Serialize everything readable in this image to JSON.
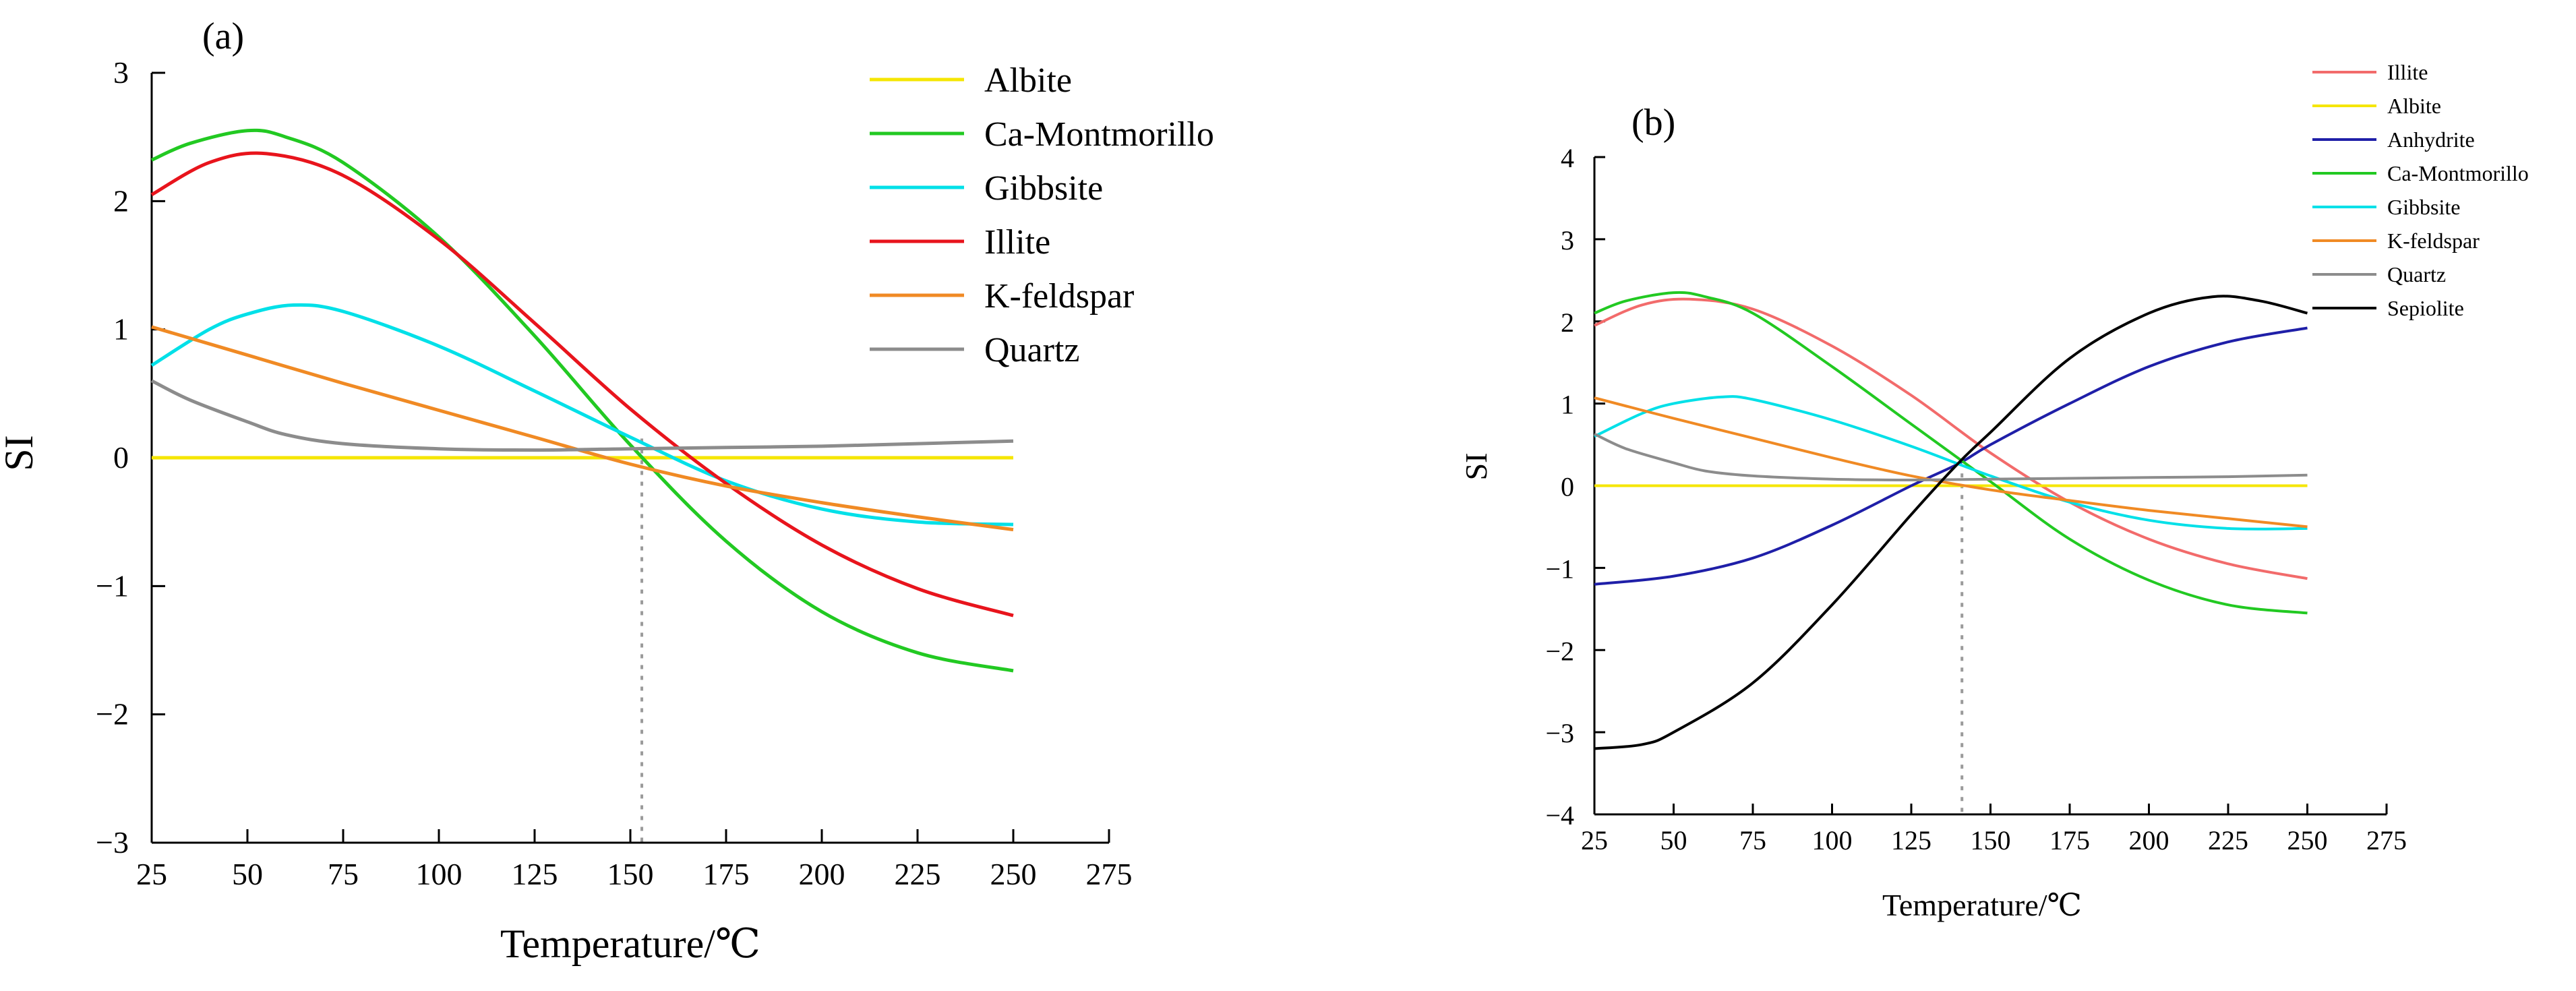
{
  "chart_data": [
    {
      "type": "line",
      "panel_label": "(a)",
      "xlabel": "Temperature/℃",
      "ylabel": "SI",
      "xlim": [
        25,
        275
      ],
      "ylim": [
        -3,
        3
      ],
      "xticks": [
        25,
        50,
        75,
        100,
        125,
        150,
        175,
        200,
        225,
        250,
        275
      ],
      "yticks": [
        3,
        2,
        1,
        0,
        -1,
        -2,
        -3
      ],
      "ytick_labels": [
        "3",
        "2",
        "1",
        "0",
        "−1",
        "−2",
        "−3"
      ],
      "reference_line_x": 153,
      "legend_position": "top-right",
      "series": [
        {
          "name": "Albite",
          "color": "#f5e600",
          "x": [
            25,
            250
          ],
          "y": [
            0,
            0
          ]
        },
        {
          "name": "Ca-Montmorillo",
          "color": "#22c922",
          "x": [
            25,
            35,
            50,
            60,
            75,
            100,
            125,
            150,
            175,
            200,
            225,
            250
          ],
          "y": [
            2.32,
            2.45,
            2.55,
            2.5,
            2.3,
            1.72,
            0.95,
            0.1,
            -0.65,
            -1.2,
            -1.52,
            -1.66
          ]
        },
        {
          "name": "Gibbsite",
          "color": "#00e0e8",
          "x": [
            25,
            40,
            50,
            62,
            75,
            100,
            125,
            150,
            175,
            200,
            225,
            250
          ],
          "y": [
            0.72,
            1.0,
            1.12,
            1.19,
            1.14,
            0.87,
            0.52,
            0.16,
            -0.18,
            -0.4,
            -0.5,
            -0.52
          ]
        },
        {
          "name": "Illite",
          "color": "#e8141c",
          "x": [
            25,
            40,
            55,
            75,
            100,
            125,
            150,
            175,
            200,
            225,
            250
          ],
          "y": [
            2.05,
            2.3,
            2.37,
            2.2,
            1.7,
            1.05,
            0.38,
            -0.2,
            -0.68,
            -1.02,
            -1.23
          ]
        },
        {
          "name": "K-feldspar",
          "color": "#f08a24",
          "x": [
            25,
            50,
            75,
            100,
            125,
            150,
            175,
            200,
            225,
            250
          ],
          "y": [
            1.02,
            0.8,
            0.58,
            0.37,
            0.16,
            -0.05,
            -0.22,
            -0.35,
            -0.46,
            -0.56
          ]
        },
        {
          "name": "Quartz",
          "color": "#8c8c8c",
          "x": [
            25,
            35,
            50,
            60,
            75,
            100,
            125,
            150,
            175,
            200,
            225,
            250
          ],
          "y": [
            0.6,
            0.45,
            0.28,
            0.18,
            0.11,
            0.07,
            0.06,
            0.07,
            0.08,
            0.09,
            0.11,
            0.13
          ]
        }
      ]
    },
    {
      "type": "line",
      "panel_label": "(b)",
      "xlabel": "Temperature/℃",
      "ylabel": "SI",
      "xlim": [
        25,
        275
      ],
      "ylim": [
        -4,
        4
      ],
      "xticks": [
        25,
        50,
        75,
        100,
        125,
        150,
        175,
        200,
        225,
        250,
        275
      ],
      "yticks": [
        4,
        3,
        2,
        1,
        0,
        -1,
        -2,
        -3,
        -4
      ],
      "ytick_labels": [
        "4",
        "3",
        "2",
        "1",
        "0",
        "−1",
        "−2",
        "−3",
        "−4"
      ],
      "reference_line_x": 141,
      "legend_position": "top-right",
      "series": [
        {
          "name": "Illite",
          "color": "#f26b6b",
          "x": [
            25,
            40,
            55,
            75,
            100,
            125,
            150,
            175,
            200,
            225,
            250
          ],
          "y": [
            1.95,
            2.2,
            2.27,
            2.15,
            1.7,
            1.1,
            0.4,
            -0.2,
            -0.65,
            -0.95,
            -1.13
          ]
        },
        {
          "name": "Albite",
          "color": "#f5e600",
          "x": [
            25,
            250
          ],
          "y": [
            0,
            0
          ]
        },
        {
          "name": "Anhydrite",
          "color": "#1f1fa8",
          "x": [
            25,
            50,
            75,
            100,
            125,
            140,
            150,
            175,
            200,
            225,
            250
          ],
          "y": [
            -1.2,
            -1.1,
            -0.88,
            -0.48,
            0.0,
            0.27,
            0.5,
            1.0,
            1.45,
            1.75,
            1.92
          ]
        },
        {
          "name": "Ca-Montmorillo",
          "color": "#22c922",
          "x": [
            25,
            35,
            50,
            60,
            75,
            100,
            125,
            150,
            175,
            200,
            225,
            250
          ],
          "y": [
            2.1,
            2.25,
            2.35,
            2.3,
            2.1,
            1.45,
            0.75,
            0.05,
            -0.65,
            -1.15,
            -1.45,
            -1.55
          ]
        },
        {
          "name": "Gibbsite",
          "color": "#00e0e8",
          "x": [
            25,
            40,
            50,
            65,
            75,
            100,
            125,
            150,
            175,
            200,
            225,
            250
          ],
          "y": [
            0.6,
            0.88,
            1.0,
            1.08,
            1.05,
            0.8,
            0.48,
            0.12,
            -0.2,
            -0.42,
            -0.52,
            -0.52
          ]
        },
        {
          "name": "K-feldspar",
          "color": "#f08a24",
          "x": [
            25,
            50,
            75,
            100,
            125,
            150,
            175,
            200,
            225,
            250
          ],
          "y": [
            1.07,
            0.82,
            0.58,
            0.34,
            0.12,
            -0.05,
            -0.18,
            -0.3,
            -0.4,
            -0.5
          ]
        },
        {
          "name": "Quartz",
          "color": "#8c8c8c",
          "x": [
            25,
            35,
            50,
            60,
            75,
            100,
            125,
            150,
            175,
            200,
            225,
            250
          ],
          "y": [
            0.63,
            0.45,
            0.28,
            0.18,
            0.12,
            0.08,
            0.07,
            0.08,
            0.09,
            0.1,
            0.11,
            0.13
          ]
        },
        {
          "name": "Sepiolite",
          "color": "#000000",
          "x": [
            25,
            40,
            50,
            75,
            100,
            125,
            140,
            150,
            175,
            200,
            220,
            235,
            250
          ],
          "y": [
            -3.2,
            -3.15,
            -3.0,
            -2.4,
            -1.45,
            -0.35,
            0.28,
            0.65,
            1.55,
            2.1,
            2.3,
            2.25,
            2.1
          ]
        }
      ]
    }
  ]
}
